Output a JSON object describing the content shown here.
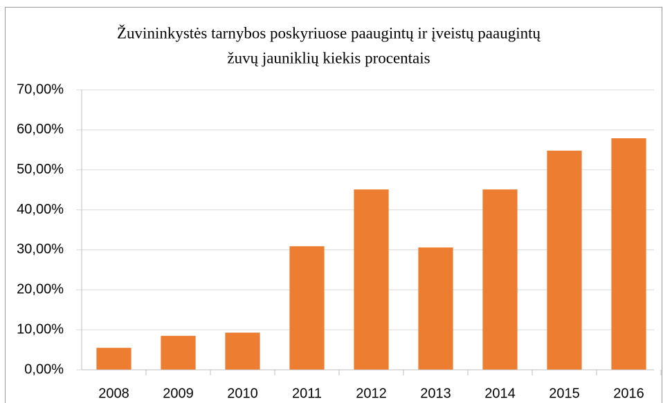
{
  "chart_data": {
    "type": "bar",
    "title": [
      "Žuvininkystės tarnybos poskyriuose paaugintų ir įveistų paaugintų",
      "žuvų jauniklių kiekis procentais"
    ],
    "categories": [
      "2008",
      "2009",
      "2010",
      "2011",
      "2012",
      "2013",
      "2014",
      "2015",
      "2016"
    ],
    "values": [
      5.5,
      8.5,
      9.3,
      30.9,
      45.1,
      30.6,
      45.1,
      54.8,
      57.9
    ],
    "color": "#ed7d31",
    "ylim": [
      0,
      70
    ],
    "yticks": [
      {
        "value": 0,
        "label": "0,00%"
      },
      {
        "value": 10,
        "label": "10,00%"
      },
      {
        "value": 20,
        "label": "20,00%"
      },
      {
        "value": 30,
        "label": "30,00%"
      },
      {
        "value": 40,
        "label": "40,00%"
      },
      {
        "value": 50,
        "label": "50,00%"
      },
      {
        "value": 60,
        "label": "60,00%"
      },
      {
        "value": 70,
        "label": "70,00%"
      }
    ],
    "grid": true
  }
}
